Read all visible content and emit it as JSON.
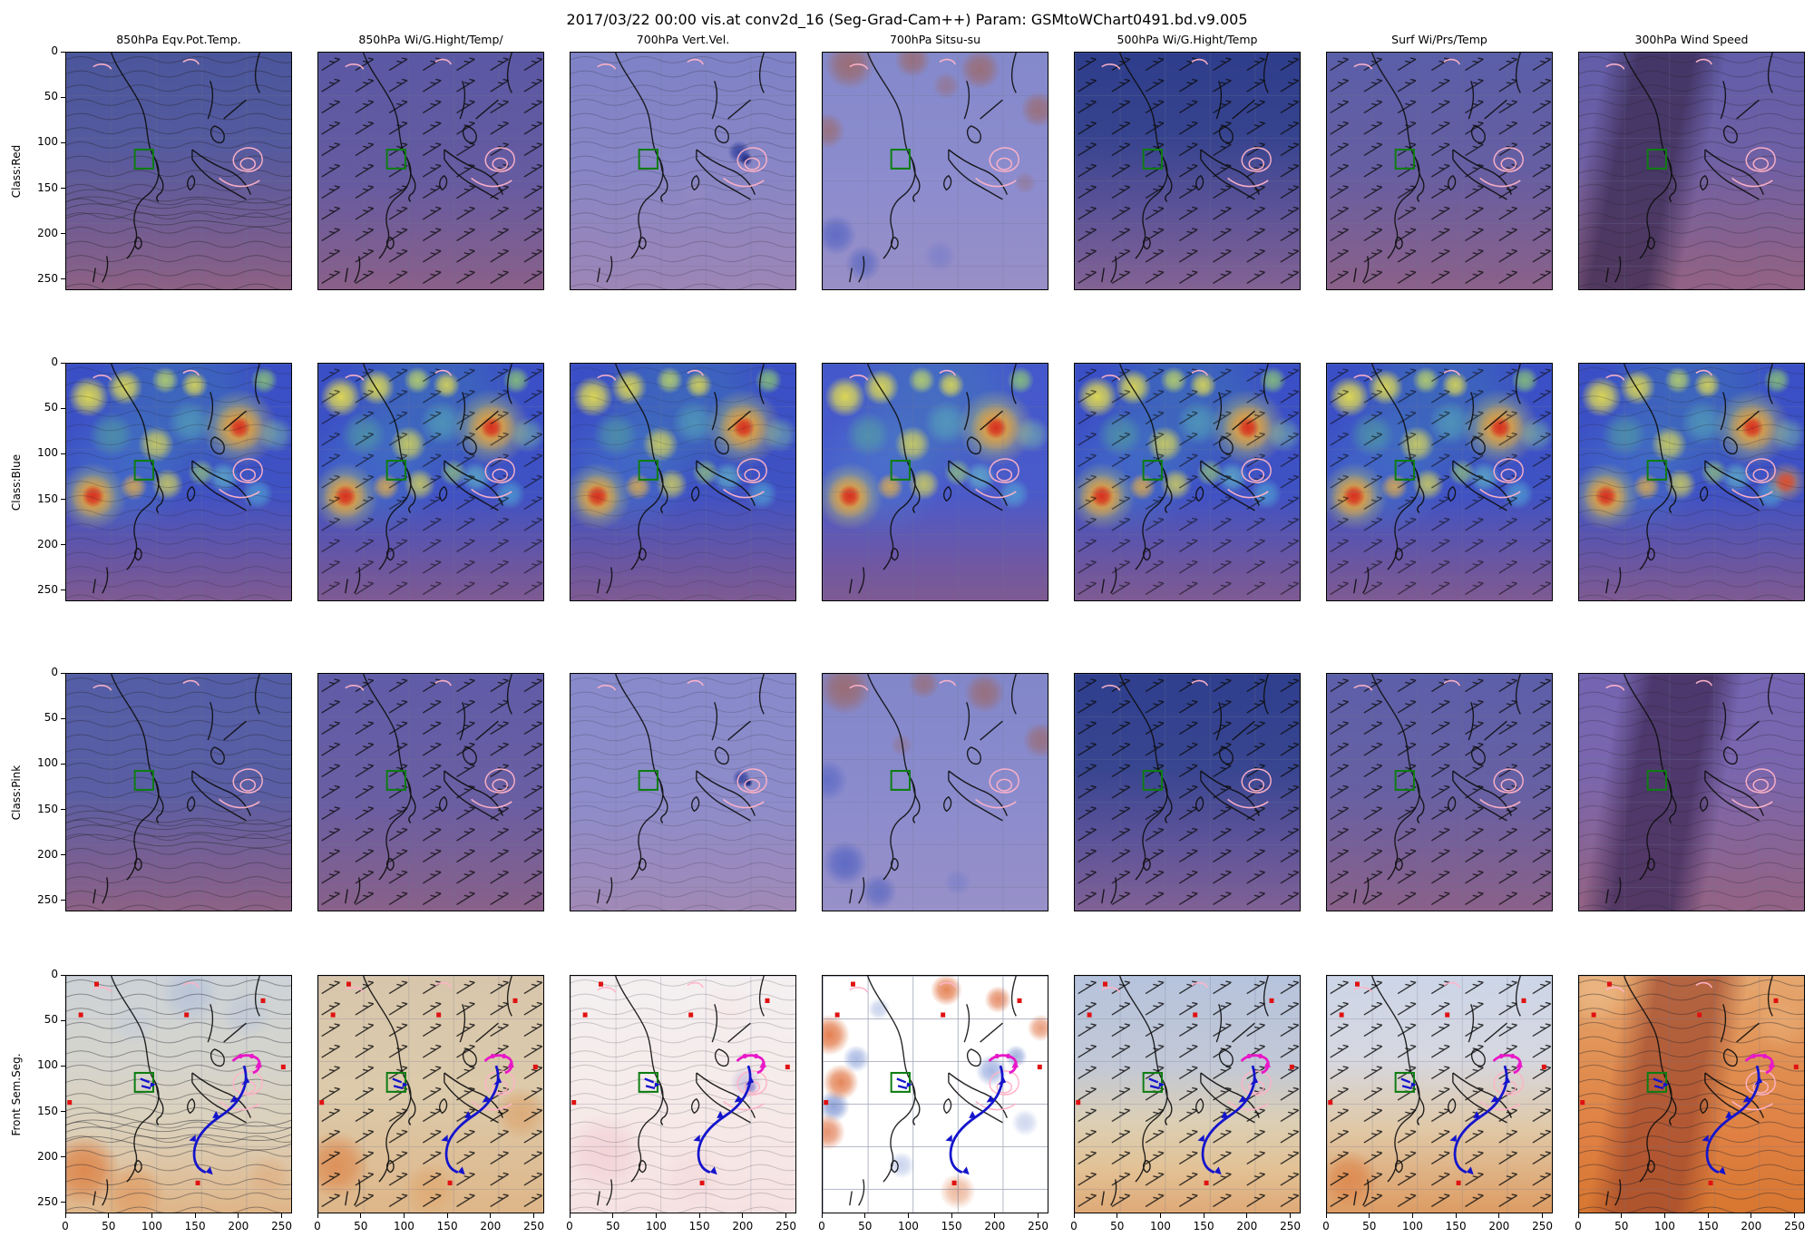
{
  "figure": {
    "title": "2017/03/22 00:00 vis.at conv2d_16 (Seg-Grad-Cam++) Param: GSMtoWChart0491.bd.v9.005",
    "background": "#ffffff"
  },
  "rows": [
    {
      "label": "Class:Red"
    },
    {
      "label": "Class:Blue"
    },
    {
      "label": "Class:Pink"
    },
    {
      "label": "Front Sem.Seg."
    }
  ],
  "columns": [
    {
      "label": "850hPa Eqv.Pot.Temp."
    },
    {
      "label": "850hPa Wi/G.Hight/Temp/"
    },
    {
      "label": "700hPa Vert.Vel."
    },
    {
      "label": "700hPa Sitsu-su"
    },
    {
      "label": "500hPa Wi/G.Hight/Temp"
    },
    {
      "label": "Surf Wi/Prs/Temp"
    },
    {
      "label": "300hPa Wind Speed"
    }
  ],
  "axis": {
    "x_ticks": [
      "0",
      "50",
      "100",
      "150",
      "200",
      "250"
    ],
    "y_ticks": [
      "0",
      "50",
      "100",
      "150",
      "200",
      "250"
    ],
    "range_max": 262
  },
  "chart_data": {
    "type": "heatmap",
    "grid_rows": 4,
    "grid_cols": 7,
    "map_region_overlays": {
      "coastline_color": "#0d0d0d",
      "target_box_color": "#0e7d12",
      "cyclone_contour_color": "#ffb3c8",
      "cold_front_color": "#1414cc",
      "occluded_front_color": "#e818c8",
      "warm_mark_color": "#e01212"
    },
    "cam_blobs": [
      [
        77,
        27,
        5,
        "#d63020",
        1
      ],
      [
        77,
        27,
        11,
        "#f6a02e",
        0.8
      ],
      [
        77,
        27,
        17,
        "#ece44a",
        0.5
      ],
      [
        12,
        56,
        5,
        "#d63020",
        1
      ],
      [
        12,
        56,
        10,
        "#f6a02e",
        0.8
      ],
      [
        12,
        56,
        15,
        "#ece44a",
        0.5
      ],
      [
        10,
        14,
        9,
        "#ece44a",
        0.9
      ],
      [
        26,
        10,
        8,
        "#ece44a",
        0.85
      ],
      [
        44,
        7,
        6,
        "#cde45c",
        0.75
      ],
      [
        57,
        9,
        6,
        "#ece44a",
        0.8
      ],
      [
        88,
        7,
        6,
        "#9bdc66",
        0.7
      ],
      [
        40,
        34,
        8,
        "#ece44a",
        0.75
      ],
      [
        30,
        52,
        6,
        "#f2b63e",
        0.75
      ],
      [
        45,
        51,
        7,
        "#ece44a",
        0.7
      ],
      [
        60,
        46,
        6,
        "#a8e06a",
        0.6
      ],
      [
        70,
        48,
        7,
        "#6fd8c8",
        0.55
      ],
      [
        85,
        55,
        7,
        "#58c8dc",
        0.5
      ],
      [
        55,
        25,
        10,
        "#62c8b4",
        0.45
      ],
      [
        20,
        30,
        10,
        "#5fc887",
        0.4
      ],
      [
        93,
        30,
        8,
        "#8fd89a",
        0.45
      ],
      [
        50,
        15,
        40,
        "#46b89a",
        0.22
      ],
      [
        25,
        45,
        30,
        "#4fc0d0",
        0.18
      ]
    ],
    "panels": [
      [
        {
          "base": [
            "#4a569c",
            "#555a9e 40%",
            "#6f5c94 70%",
            "#8d6184"
          ],
          "texture": "contours",
          "tex_op": 0.5,
          "swirl": true
        },
        {
          "base": [
            "#5a58a4",
            "#665ba0 55%",
            "#8a6089"
          ],
          "texture": "barbs",
          "tex_op": 0.8
        },
        {
          "base": [
            "#7e82c6",
            "#8886c6 50%",
            "#9d85b6"
          ],
          "texture": "contours",
          "tex_op": 0.3,
          "blobs": [
            [
              75,
              42,
              5,
              "#2a3a9a",
              0.8
            ],
            [
              78,
              45,
              3,
              "#16207a",
              0.9
            ],
            [
              20,
              75,
              8,
              "#8f87c0",
              0.5
            ],
            [
              55,
              60,
              7,
              "#9a8cc2",
              0.4
            ]
          ]
        },
        {
          "base": [
            "#8489cb",
            "#8c8cce 55%",
            "#988fc6"
          ],
          "blobs": [
            [
              12,
              5,
              11,
              "#9c6a6c",
              0.9
            ],
            [
              40,
              3,
              8,
              "#9c6a6c",
              0.8
            ],
            [
              70,
              7,
              9,
              "#9c6a6c",
              0.85
            ],
            [
              96,
              24,
              8,
              "#9c6a6c",
              0.8
            ],
            [
              2,
              33,
              8,
              "#9c6a6c",
              0.75
            ],
            [
              55,
              14,
              6,
              "#9c6a6c",
              0.5
            ],
            [
              6,
              77,
              9,
              "#5564c2",
              0.8
            ],
            [
              18,
              89,
              8,
              "#5564c2",
              0.7
            ],
            [
              52,
              86,
              7,
              "#7078ca",
              0.55
            ],
            [
              90,
              55,
              5,
              "#9c6a6c",
              0.4
            ]
          ]
        },
        {
          "base": [
            "#2e3d8c",
            "#36438e 35%",
            "#5a5298 65%",
            "#836293"
          ],
          "texture": "barbs",
          "tex_op": 0.8
        },
        {
          "base": [
            "#5a5ea8",
            "#665ea2 50%",
            "#8b6189"
          ],
          "texture": "barbs",
          "tex_op": 0.8
        },
        {
          "base": [
            "#625da9",
            "#6f60a5 45%",
            "#916285 95%"
          ],
          "band": {
            "angle": 102,
            "color": "#3a2a52",
            "alpha": 0.75,
            "pos": [
              22,
              42
            ]
          },
          "texture": "contours",
          "tex_op": 0.4
        }
      ],
      [
        {
          "base": [
            "#3a4fc6",
            "#3f52c4 55%",
            "#6c56a0 85%",
            "#7e5a92"
          ],
          "blobs_ref": "cam_blobs",
          "texture": "contours",
          "tex_op": 0.3
        },
        {
          "base": [
            "#3a4fc6",
            "#3f52c4 55%",
            "#6c56a0 85%",
            "#7e5a92"
          ],
          "blobs_ref": "cam_blobs",
          "texture": "barbs",
          "tex_op": 0.6
        },
        {
          "base": [
            "#3a4fc6",
            "#3f52c4 55%",
            "#6c56a0 85%",
            "#7e5a92"
          ],
          "blobs_ref": "cam_blobs",
          "texture": "contours",
          "tex_op": 0.22
        },
        {
          "base": [
            "#4458cc",
            "#4a5aca 55%",
            "#7058a2 85%",
            "#7e5a92"
          ],
          "blobs_ref": "cam_blobs"
        },
        {
          "base": [
            "#3a4fc6",
            "#3f52c4 55%",
            "#6c56a0 85%",
            "#7e5a92"
          ],
          "blobs_ref": "cam_blobs",
          "texture": "barbs",
          "tex_op": 0.6
        },
        {
          "base": [
            "#3a4fc6",
            "#3f52c4 55%",
            "#6c56a0 85%",
            "#7e5a92"
          ],
          "blobs_ref": "cam_blobs",
          "texture": "barbs",
          "tex_op": 0.6
        },
        {
          "base": [
            "#3a4fc6",
            "#3f52c4 55%",
            "#6c56a0 85%",
            "#7e5a92"
          ],
          "blobs": [
            [
              92,
              50,
              5,
              "#e04828",
              0.85
            ],
            [
              92,
              50,
              9,
              "#f2a43c",
              0.55
            ]
          ],
          "blobs_ref": "cam_blobs",
          "texture": "contours",
          "tex_op": 0.3
        }
      ],
      [
        {
          "base": [
            "#535ea6",
            "#5a5ea4 50%",
            "#7a5f92 80%",
            "#8d6286"
          ],
          "texture": "contours",
          "tex_op": 0.45,
          "swirl": true
        },
        {
          "base": [
            "#605ca8",
            "#6a5ea2 55%",
            "#886189"
          ],
          "texture": "barbs",
          "tex_op": 0.8
        },
        {
          "base": [
            "#878acb",
            "#8e8cca 55%",
            "#a189b6"
          ],
          "texture": "contours",
          "tex_op": 0.25,
          "blobs": [
            [
              76,
              44,
              4,
              "#2a3a9a",
              0.8
            ],
            [
              79,
              46,
              2,
              "#101a70",
              0.95
            ]
          ]
        },
        {
          "base": [
            "#8287ca",
            "#8a8bcd 50%",
            "#9890c8"
          ],
          "blobs": [
            [
              10,
              6,
              12,
              "#9c6a6c",
              0.9
            ],
            [
              45,
              4,
              7,
              "#9c6a6c",
              0.7
            ],
            [
              72,
              8,
              9,
              "#9c6a6c",
              0.8
            ],
            [
              97,
              28,
              8,
              "#9c6a6c",
              0.75
            ],
            [
              2,
              45,
              9,
              "#5564c2",
              0.7
            ],
            [
              10,
              80,
              10,
              "#5564c2",
              0.85
            ],
            [
              25,
              92,
              8,
              "#5564c2",
              0.7
            ],
            [
              60,
              88,
              6,
              "#7078ca",
              0.5
            ],
            [
              35,
              30,
              5,
              "#9c6a6c",
              0.4
            ]
          ]
        },
        {
          "base": [
            "#2f3f8e",
            "#384590 40%",
            "#5c5399 70%",
            "#806195"
          ],
          "texture": "barbs",
          "tex_op": 0.8
        },
        {
          "base": [
            "#5c5fa9",
            "#6760a3 50%",
            "#8a6189"
          ],
          "texture": "barbs",
          "tex_op": 0.8
        },
        {
          "base": [
            "#7465b2",
            "#7a66ae 40%",
            "#926386 95%"
          ],
          "band": {
            "angle": 100,
            "color": "#432d5c",
            "alpha": 0.8,
            "pos": [
              28,
              50
            ]
          },
          "texture": "contours",
          "tex_op": 0.35
        }
      ],
      [
        {
          "base": [
            "#cdd3d8",
            "#d6d4cb 40%",
            "#dcd0b9 65%",
            "#dfb588"
          ],
          "blobs": [
            [
              8,
              82,
              16,
              "#dd8347",
              0.9
            ],
            [
              30,
              92,
              14,
              "#e09a60",
              0.75
            ],
            [
              90,
              85,
              10,
              "#e0a878",
              0.5
            ],
            [
              55,
              8,
              13,
              "#aebdd8",
              0.65
            ],
            [
              80,
              16,
              11,
              "#b8c4da",
              0.55
            ],
            [
              30,
              20,
              10,
              "#c2cbdc",
              0.5
            ]
          ],
          "texture": "contours",
          "tex_op": 0.5,
          "swirl": true,
          "fronts": true
        },
        {
          "base": [
            "#d8c6ac",
            "#dccaab 50%",
            "#deb688"
          ],
          "blobs": [
            [
              8,
              80,
              15,
              "#dd8a50",
              0.85
            ],
            [
              90,
              58,
              12,
              "#dd9a5e",
              0.6
            ],
            [
              50,
              90,
              12,
              "#e0a368",
              0.6
            ]
          ],
          "texture": "barbs",
          "tex_op": 0.85,
          "fronts": true
        },
        {
          "base": [
            "#f4f0f1",
            "#f6ebea 50%",
            "#f6e2e2"
          ],
          "blobs": [
            [
              15,
              75,
              18,
              "#f2cfd4",
              0.8
            ],
            [
              55,
              85,
              14,
              "#f4dadc",
              0.7
            ],
            [
              70,
              15,
              12,
              "#f6e6e8",
              0.6
            ],
            [
              78,
              45,
              7,
              "#b4aad8",
              0.55
            ],
            [
              80,
              47,
              3,
              "#5f55c0",
              0.7
            ]
          ],
          "texture": "contours",
          "tex_op": 0.25,
          "fronts": true
        },
        {
          "base": [
            "#ffffff",
            "#ffffff"
          ],
          "grat_op": 0.6,
          "blobs": [
            [
              3,
              25,
              9,
              "#e0713e",
              0.9
            ],
            [
              8,
              45,
              8,
              "#e0713e",
              0.85
            ],
            [
              2,
              66,
              8,
              "#e0764a",
              0.8
            ],
            [
              55,
              6,
              7,
              "#e0713e",
              0.85
            ],
            [
              78,
              10,
              6,
              "#e0764a",
              0.8
            ],
            [
              97,
              22,
              6,
              "#e0764a",
              0.7
            ],
            [
              60,
              91,
              8,
              "#e08050",
              0.55
            ],
            [
              5,
              55,
              7,
              "#7e93d2",
              0.85
            ],
            [
              15,
              35,
              6,
              "#8aa0da",
              0.7
            ],
            [
              75,
              40,
              7,
              "#8aa0da",
              0.75
            ],
            [
              86,
              34,
              5,
              "#7e93d2",
              0.7
            ],
            [
              25,
              14,
              5,
              "#9fb0de",
              0.55
            ],
            [
              90,
              62,
              6,
              "#9fb0de",
              0.5
            ],
            [
              35,
              80,
              6,
              "#8aa0da",
              0.45
            ]
          ],
          "fronts": true
        },
        {
          "base": [
            "#b6c3dc",
            "#c2c8d6 38%",
            "#dccfb4 62%",
            "#e2c194 82%",
            "#dfa977"
          ],
          "texture": "barbs",
          "tex_op": 0.85,
          "fronts": true
        },
        {
          "base": [
            "#ccd6e7",
            "#d6d7e0 35%",
            "#e0c8a6 65%",
            "#dd9c63"
          ],
          "blobs": [
            [
              10,
              86,
              13,
              "#dd8448",
              0.8
            ]
          ],
          "texture": "barbs",
          "tex_op": 0.85,
          "fronts": true
        },
        {
          "base": [
            "#e5a76f",
            "#e08d50 40%",
            "#df7f41 70%",
            "#d87730"
          ],
          "band": {
            "angle": 100,
            "color": "#99422a",
            "alpha": 0.65,
            "pos": [
              30,
              52
            ]
          },
          "blobs": [
            [
              8,
              8,
              14,
              "#f0c89a",
              0.5
            ],
            [
              90,
              20,
              12,
              "#eab47e",
              0.45
            ]
          ],
          "texture": "contours",
          "tex_op": 0.5,
          "fronts": true
        }
      ]
    ]
  }
}
